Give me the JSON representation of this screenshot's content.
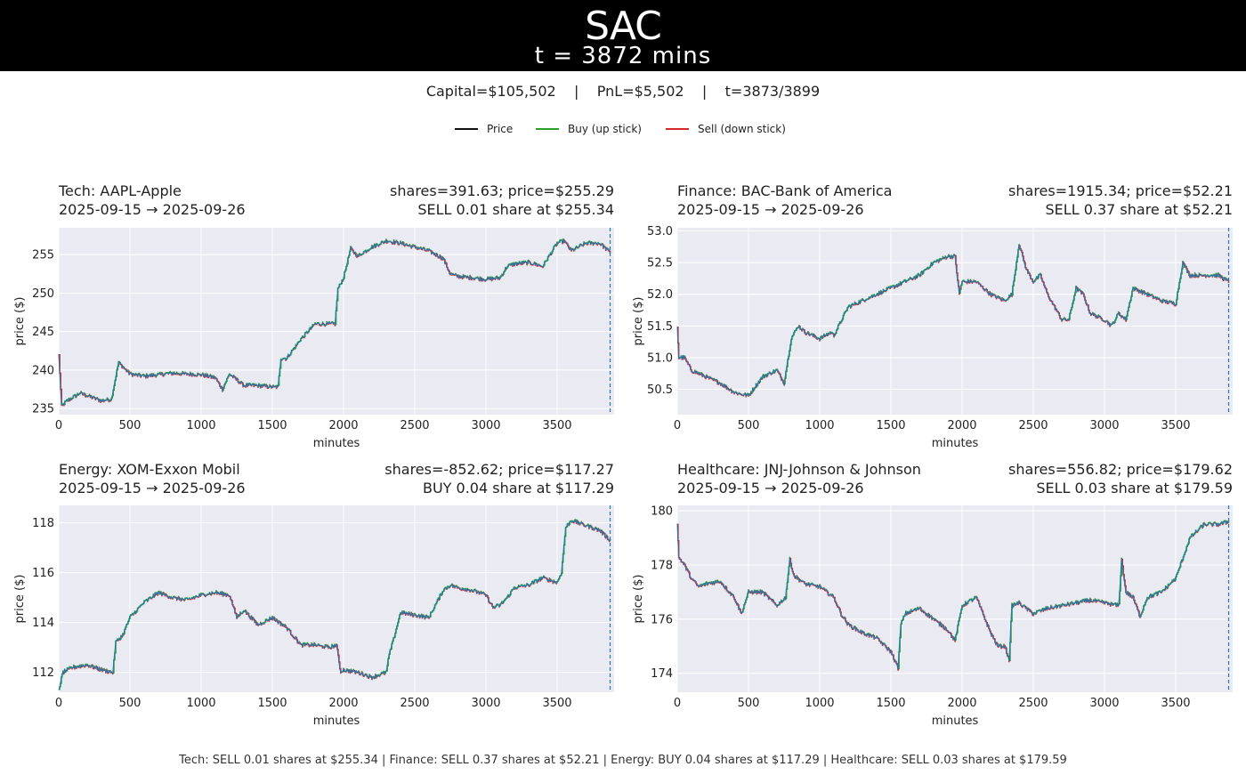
{
  "header": {
    "title": "SAC",
    "subtitle": "t = 3872 mins"
  },
  "summary": {
    "capital": "Capital=$105,502",
    "pnl": "PnL=$5,502",
    "step": "t=3873/3899",
    "separator": "|"
  },
  "legend": [
    {
      "label": "Price",
      "color": "#111111"
    },
    {
      "label": "Buy (up stick)",
      "color": "#2ca02c"
    },
    {
      "label": "Sell (down stick)",
      "color": "#d62728"
    }
  ],
  "colors": {
    "price": "#1f77b4",
    "buy": "#2ca02c",
    "sell": "#d62728",
    "marker": "#1f77b4",
    "plot_bg": "#eaeaf2"
  },
  "panels": [
    {
      "title": "Tech: AAPL-Apple",
      "date_range": "2025-09-15 → 2025-09-26",
      "shares_price": "shares=391.63; price=$255.29",
      "action": "SELL 0.01 share at $255.34"
    },
    {
      "title": "Finance: BAC-Bank of America",
      "date_range": "2025-09-15 → 2025-09-26",
      "shares_price": "shares=1915.34; price=$52.21",
      "action": "SELL 0.37 share at $52.21"
    },
    {
      "title": "Energy: XOM-Exxon Mobil",
      "date_range": "2025-09-15 → 2025-09-26",
      "shares_price": "shares=-852.62; price=$117.27",
      "action": "BUY 0.04 share at $117.29"
    },
    {
      "title": "Healthcare: JNJ-Johnson & Johnson",
      "date_range": "2025-09-15 → 2025-09-26",
      "shares_price": "shares=556.82; price=$179.62",
      "action": "SELL 0.03 share at $179.59"
    }
  ],
  "chart_data": [
    {
      "type": "line",
      "title": "Tech: AAPL-Apple",
      "xlabel": "minutes",
      "ylabel": "price ($)",
      "xlim": [
        0,
        3900
      ],
      "ylim": [
        234.2,
        258.5
      ],
      "current_t": 3872,
      "xticks": [
        0,
        500,
        1000,
        1500,
        2000,
        2500,
        3000,
        3500
      ],
      "yticks": [
        235,
        240,
        245,
        250,
        255
      ],
      "x": [
        0,
        20,
        60,
        150,
        300,
        370,
        420,
        500,
        600,
        700,
        800,
        900,
        1000,
        1100,
        1150,
        1200,
        1300,
        1400,
        1500,
        1540,
        1560,
        1600,
        1700,
        1800,
        1900,
        1940,
        1960,
        2000,
        2050,
        2100,
        2200,
        2300,
        2400,
        2500,
        2600,
        2700,
        2750,
        2800,
        2900,
        3000,
        3100,
        3150,
        3200,
        3300,
        3400,
        3500,
        3550,
        3600,
        3700,
        3800,
        3872
      ],
      "y": [
        242,
        235.3,
        236,
        237,
        236,
        236.2,
        241,
        239.5,
        239.2,
        239.4,
        239.6,
        239.5,
        239.4,
        239,
        237.5,
        239.5,
        238,
        238,
        237.8,
        237.8,
        241.5,
        241.5,
        244,
        246,
        246,
        246,
        250.5,
        252,
        255.8,
        254.8,
        256,
        256.8,
        256.5,
        256,
        255.5,
        254.5,
        252.5,
        252.2,
        252,
        251.8,
        252,
        253.5,
        253.8,
        254,
        253.5,
        256.5,
        256.8,
        255.5,
        256.5,
        256.5,
        255.3
      ]
    },
    {
      "type": "line",
      "title": "Finance: BAC-Bank of America",
      "xlabel": "minutes",
      "ylabel": "price ($)",
      "xlim": [
        0,
        3900
      ],
      "ylim": [
        50.1,
        53.05
      ],
      "current_t": 3872,
      "xticks": [
        0,
        500,
        1000,
        1500,
        2000,
        2500,
        3000,
        3500
      ],
      "yticks": [
        50.5,
        51.0,
        51.5,
        52.0,
        52.5,
        53.0
      ],
      "x": [
        0,
        10,
        50,
        100,
        200,
        300,
        400,
        500,
        600,
        700,
        750,
        800,
        850,
        900,
        1000,
        1080,
        1100,
        1200,
        1300,
        1400,
        1500,
        1600,
        1700,
        1800,
        1900,
        1950,
        1980,
        2000,
        2100,
        2200,
        2300,
        2350,
        2400,
        2450,
        2500,
        2550,
        2600,
        2700,
        2750,
        2800,
        2850,
        2900,
        3000,
        3050,
        3100,
        3150,
        3200,
        3300,
        3400,
        3500,
        3550,
        3600,
        3700,
        3800,
        3872
      ],
      "y": [
        51.5,
        51.0,
        51.0,
        50.8,
        50.7,
        50.6,
        50.45,
        50.4,
        50.7,
        50.8,
        50.6,
        51.3,
        51.5,
        51.4,
        51.3,
        51.4,
        51.35,
        51.8,
        51.9,
        52.0,
        52.1,
        52.2,
        52.3,
        52.5,
        52.6,
        52.6,
        52.0,
        52.2,
        52.2,
        52.0,
        51.9,
        52.0,
        52.8,
        52.4,
        52.2,
        52.3,
        52.0,
        51.6,
        51.6,
        52.1,
        52.0,
        51.7,
        51.6,
        51.5,
        51.7,
        51.6,
        52.1,
        52.0,
        51.9,
        51.85,
        52.5,
        52.3,
        52.3,
        52.3,
        52.2
      ]
    },
    {
      "type": "line",
      "title": "Energy: XOM-Exxon Mobil",
      "xlabel": "minutes",
      "ylabel": "price ($)",
      "xlim": [
        0,
        3900
      ],
      "ylim": [
        111.2,
        118.7
      ],
      "current_t": 3872,
      "xticks": [
        0,
        500,
        1000,
        1500,
        2000,
        2500,
        3000,
        3500
      ],
      "yticks": [
        112,
        114,
        116,
        118
      ],
      "x": [
        0,
        30,
        100,
        200,
        300,
        380,
        400,
        450,
        500,
        600,
        700,
        800,
        900,
        1000,
        1100,
        1200,
        1250,
        1300,
        1400,
        1500,
        1600,
        1700,
        1800,
        1900,
        1950,
        1980,
        2000,
        2100,
        2200,
        2300,
        2320,
        2350,
        2400,
        2500,
        2600,
        2700,
        2750,
        2800,
        2900,
        3000,
        3050,
        3100,
        3150,
        3200,
        3300,
        3400,
        3500,
        3530,
        3560,
        3600,
        3700,
        3800,
        3872
      ],
      "y": [
        111.3,
        112.0,
        112.2,
        112.3,
        112.1,
        112.0,
        113.2,
        113.5,
        114.2,
        114.8,
        115.2,
        115.0,
        114.9,
        115.1,
        115.2,
        115.1,
        114.2,
        114.5,
        113.9,
        114.2,
        113.8,
        113.1,
        113.1,
        113.0,
        113.1,
        112.0,
        112.1,
        112.0,
        111.8,
        112.0,
        112.7,
        113.3,
        114.4,
        114.3,
        114.2,
        115.3,
        115.5,
        115.4,
        115.3,
        115.1,
        114.6,
        114.7,
        115.0,
        115.4,
        115.5,
        115.8,
        115.6,
        116.0,
        117.8,
        118.1,
        117.9,
        117.7,
        117.3
      ]
    },
    {
      "type": "line",
      "title": "Healthcare: JNJ-Johnson & Johnson",
      "xlabel": "minutes",
      "ylabel": "price ($)",
      "xlim": [
        0,
        3900
      ],
      "ylim": [
        173.3,
        180.2
      ],
      "current_t": 3872,
      "xticks": [
        0,
        500,
        1000,
        1500,
        2000,
        2500,
        3000,
        3500
      ],
      "yticks": [
        174,
        176,
        178,
        180
      ],
      "x": [
        0,
        10,
        50,
        100,
        150,
        200,
        300,
        400,
        450,
        500,
        600,
        700,
        760,
        790,
        820,
        900,
        1000,
        1100,
        1150,
        1200,
        1300,
        1400,
        1500,
        1550,
        1570,
        1600,
        1700,
        1800,
        1900,
        1950,
        2000,
        2100,
        2200,
        2250,
        2300,
        2330,
        2350,
        2400,
        2500,
        2600,
        2700,
        2800,
        2900,
        3000,
        3100,
        3120,
        3150,
        3200,
        3250,
        3300,
        3400,
        3500,
        3600,
        3700,
        3800,
        3872
      ],
      "y": [
        179.5,
        178.3,
        178.0,
        177.5,
        177.2,
        177.3,
        177.4,
        176.8,
        176.2,
        177.0,
        177.0,
        176.5,
        176.8,
        178.2,
        177.6,
        177.3,
        177.2,
        176.8,
        176.2,
        175.8,
        175.5,
        175.3,
        174.8,
        174.2,
        175.8,
        176.2,
        176.4,
        176.0,
        175.6,
        175.2,
        176.5,
        176.8,
        175.5,
        175.0,
        175.0,
        174.5,
        176.5,
        176.6,
        176.2,
        176.4,
        176.5,
        176.6,
        176.7,
        176.6,
        176.5,
        178.2,
        177.0,
        176.8,
        176.1,
        176.8,
        177.0,
        177.5,
        179.0,
        179.5,
        179.5,
        179.6
      ]
    }
  ],
  "footer": {
    "text": "Tech: SELL 0.01 shares at $255.34 | Finance: SELL 0.37 shares at $52.21 | Energy: BUY 0.04 shares at $117.29 | Healthcare: SELL 0.03 shares at $179.59"
  }
}
